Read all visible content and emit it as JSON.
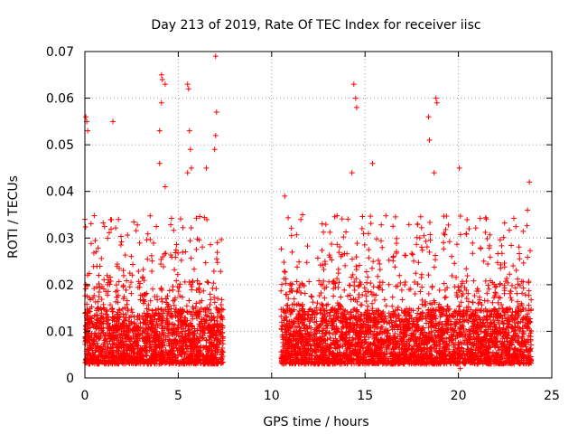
{
  "chart_data": {
    "type": "scatter",
    "title": "Day 213 of 2019, Rate Of TEC Index for receiver iisc",
    "xlabel": "GPS time / hours",
    "ylabel": "ROTI / TECUs",
    "xlim": [
      0,
      25
    ],
    "ylim": [
      0,
      0.07
    ],
    "xticks": [
      0,
      5,
      10,
      15,
      20,
      25
    ],
    "xtick_labels": [
      "0",
      "5",
      "10",
      "15",
      "20",
      "25"
    ],
    "yticks": [
      0,
      0.01,
      0.02,
      0.03,
      0.04,
      0.05,
      0.06,
      0.07
    ],
    "ytick_labels": [
      "0",
      "0.01",
      "0.02",
      "0.03",
      "0.04",
      "0.05",
      "0.06",
      "0.07"
    ],
    "grid": true,
    "marker": "+",
    "color": "#ff0000",
    "series": [
      {
        "name": "ROTI",
        "segments": [
          {
            "x_range": [
              0.0,
              7.4
            ]
          },
          {
            "x_range": [
              10.5,
              23.9
            ]
          }
        ],
        "typical_range": [
          0.003,
          0.02
        ],
        "notable_points": [
          {
            "x": 0.05,
            "y": 0.056
          },
          {
            "x": 0.1,
            "y": 0.055
          },
          {
            "x": 0.15,
            "y": 0.053
          },
          {
            "x": 0.0,
            "y": 0.034
          },
          {
            "x": 1.5,
            "y": 0.055
          },
          {
            "x": 1.8,
            "y": 0.034
          },
          {
            "x": 4.1,
            "y": 0.065
          },
          {
            "x": 4.15,
            "y": 0.064
          },
          {
            "x": 4.3,
            "y": 0.063
          },
          {
            "x": 4.1,
            "y": 0.059
          },
          {
            "x": 4.0,
            "y": 0.053
          },
          {
            "x": 4.0,
            "y": 0.046
          },
          {
            "x": 4.3,
            "y": 0.041
          },
          {
            "x": 5.5,
            "y": 0.063
          },
          {
            "x": 5.55,
            "y": 0.062
          },
          {
            "x": 5.6,
            "y": 0.053
          },
          {
            "x": 5.65,
            "y": 0.049
          },
          {
            "x": 5.5,
            "y": 0.044
          },
          {
            "x": 5.7,
            "y": 0.045
          },
          {
            "x": 7.0,
            "y": 0.069
          },
          {
            "x": 7.05,
            "y": 0.057
          },
          {
            "x": 7.0,
            "y": 0.052
          },
          {
            "x": 6.95,
            "y": 0.049
          },
          {
            "x": 6.5,
            "y": 0.045
          },
          {
            "x": 10.7,
            "y": 0.039
          },
          {
            "x": 14.4,
            "y": 0.063
          },
          {
            "x": 14.5,
            "y": 0.06
          },
          {
            "x": 14.55,
            "y": 0.058
          },
          {
            "x": 14.3,
            "y": 0.044
          },
          {
            "x": 15.4,
            "y": 0.046
          },
          {
            "x": 18.4,
            "y": 0.056
          },
          {
            "x": 18.45,
            "y": 0.051
          },
          {
            "x": 18.8,
            "y": 0.06
          },
          {
            "x": 18.85,
            "y": 0.059
          },
          {
            "x": 20.05,
            "y": 0.045
          },
          {
            "x": 18.7,
            "y": 0.044
          },
          {
            "x": 23.8,
            "y": 0.042
          },
          {
            "x": 23.7,
            "y": 0.036
          },
          {
            "x": 0.05,
            "y": 0.02
          },
          {
            "x": 20.1,
            "y": 0.002
          }
        ]
      }
    ]
  }
}
